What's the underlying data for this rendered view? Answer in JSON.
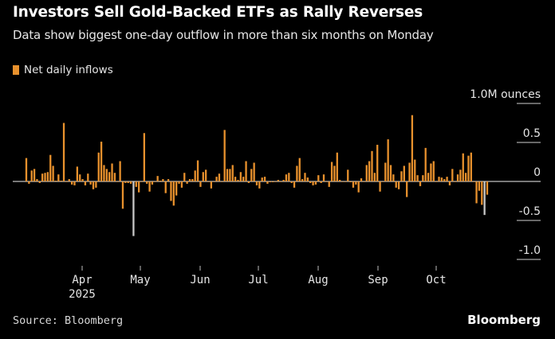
{
  "title": "Investors Sell Gold-Backed ETFs as Rally Reverses",
  "subtitle": "Data show biggest one-day outflow in more than six months on Monday",
  "source": "Source: Bloomberg",
  "logo": "Bloomberg",
  "colors": {
    "bar": "#e8912d",
    "highlight": "#c8c8c8",
    "zero_line": "#a0a0a0",
    "background": "#000000"
  },
  "chart_data": {
    "type": "bar",
    "legend": [
      {
        "name": "Net daily inflows",
        "color": "#e8912d"
      }
    ],
    "legend_placement": "top-left",
    "yunit": "M ounces",
    "ylim": [
      -1.0,
      1.0
    ],
    "yticks": [
      1.0,
      0.5,
      0,
      -0.5,
      -1.0
    ],
    "ytick_labels": [
      "1.0M ounces",
      "0.5",
      "0",
      "-0.5",
      "-1.0"
    ],
    "xtick_labels": [
      "Apr",
      "May",
      "Jun",
      "Jul",
      "Aug",
      "Sep",
      "Oct"
    ],
    "xtick_year": "2025",
    "grid": false,
    "highlight_indices": [
      40,
      -2
    ],
    "values": [
      0.3,
      -0.03,
      0.14,
      0.16,
      0.03,
      -0.02,
      0.1,
      0.11,
      0.12,
      0.34,
      0.2,
      0.01,
      0.09,
      0.01,
      0.75,
      0,
      0.03,
      -0.04,
      -0.05,
      0.19,
      0.09,
      0.03,
      -0.05,
      0.1,
      -0.04,
      -0.1,
      -0.08,
      0.37,
      0.51,
      0.21,
      0.16,
      0.12,
      0.23,
      0.11,
      0,
      0.26,
      -0.35,
      -0.02,
      -0.02,
      -0.03,
      -0.7,
      -0.07,
      -0.14,
      0,
      0.62,
      -0.03,
      -0.13,
      -0.04,
      0,
      0.07,
      0.01,
      0.03,
      -0.15,
      0.03,
      -0.25,
      -0.31,
      -0.18,
      -0.03,
      -0.08,
      0.11,
      -0.03,
      0.03,
      0.03,
      0.14,
      0.27,
      -0.07,
      0.12,
      0.15,
      0,
      -0.09,
      0,
      0.06,
      0.1,
      0,
      0.66,
      0.16,
      0.16,
      0.21,
      0.06,
      0.02,
      0.12,
      0.06,
      0.26,
      -0.02,
      0.16,
      0.24,
      -0.05,
      -0.09,
      0.05,
      0.06,
      -0.03,
      -0.01,
      -0.01,
      0,
      0.02,
      0,
      0.02,
      0.09,
      0.11,
      -0.02,
      -0.08,
      0.2,
      0.3,
      0.03,
      0.11,
      0.05,
      -0.02,
      -0.05,
      -0.04,
      0.08,
      -0.02,
      0.09,
      0,
      -0.07,
      0.25,
      0.2,
      0.37,
      0.02,
      0,
      0,
      0.15,
      -0.01,
      -0.08,
      -0.04,
      -0.14,
      0.04,
      0,
      0.21,
      0.26,
      0.39,
      0.11,
      0.47,
      -0.13,
      0,
      0.24,
      0.54,
      0.21,
      0.09,
      -0.08,
      -0.1,
      0.13,
      0.2,
      -0.2,
      0.24,
      0.85,
      0.28,
      0.08,
      -0.06,
      0.08,
      0.43,
      0.11,
      0.23,
      0.26,
      0,
      0.06,
      0.05,
      0.03,
      0.06,
      -0.05,
      0.16,
      0,
      0.09,
      0.15,
      0.36,
      0.11,
      0.33,
      0.37,
      0,
      -0.28,
      -0.12,
      -0.3,
      -0.43,
      -0.17
    ]
  }
}
